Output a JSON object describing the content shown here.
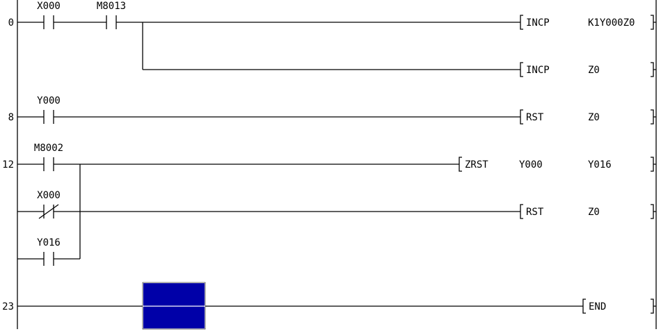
{
  "ladder": {
    "rungs": [
      {
        "step": "0",
        "rows": [
          {
            "contacts": [
              {
                "label": "X000",
                "type": "NO"
              },
              {
                "label": "M8013",
                "type": "NO"
              }
            ],
            "instruction": {
              "op": "INCP",
              "args": [
                "K1Y000Z0"
              ]
            }
          },
          {
            "contacts": [],
            "instruction": {
              "op": "INCP",
              "args": [
                "Z0"
              ]
            }
          }
        ]
      },
      {
        "step": "8",
        "rows": [
          {
            "contacts": [
              {
                "label": "Y000",
                "type": "NO"
              }
            ],
            "instruction": {
              "op": "RST",
              "args": [
                "Z0"
              ]
            }
          }
        ]
      },
      {
        "step": "12",
        "rows": [
          {
            "contacts": [
              {
                "label": "M8002",
                "type": "NO"
              }
            ],
            "instruction": {
              "op": "ZRST",
              "args": [
                "Y000",
                "Y016"
              ]
            }
          },
          {
            "contacts": [
              {
                "label": "X000",
                "type": "NC"
              }
            ],
            "instruction": {
              "op": "RST",
              "args": [
                "Z0"
              ]
            }
          },
          {
            "contacts": [
              {
                "label": "Y016",
                "type": "NO"
              }
            ],
            "instruction": null
          }
        ]
      },
      {
        "step": "23",
        "rows": [
          {
            "contacts": [],
            "instruction": {
              "op": "END",
              "args": []
            }
          }
        ]
      }
    ]
  },
  "cursor": {
    "color": "#0000a8"
  }
}
